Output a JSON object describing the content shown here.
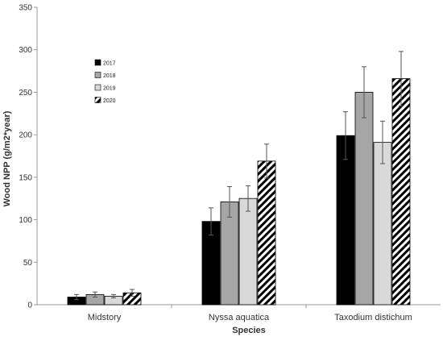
{
  "chart_data": {
    "type": "bar",
    "categories": [
      "Midstory",
      "Nyssa aquatica",
      "Taxodium distichum"
    ],
    "xlabel": "Species",
    "ylabel": "Wood NPP (g/m2*year)",
    "ylim": [
      0,
      350
    ],
    "yticks": [
      0,
      50,
      100,
      150,
      200,
      250,
      300,
      350
    ],
    "grid": false,
    "legend_position": "upper-left",
    "series": [
      {
        "name": "2017",
        "values": [
          9,
          98,
          199
        ],
        "errors": [
          3,
          16,
          28
        ],
        "fill": "#000000",
        "pattern": "solid"
      },
      {
        "name": "2018",
        "values": [
          12,
          121,
          250
        ],
        "errors": [
          3,
          18,
          30
        ],
        "fill": "#a6a6a6",
        "pattern": "solid"
      },
      {
        "name": "2019",
        "values": [
          10,
          125,
          191
        ],
        "errors": [
          2,
          15,
          25
        ],
        "fill": "#d9d9d9",
        "pattern": "solid"
      },
      {
        "name": "2020",
        "values": [
          14,
          169,
          266
        ],
        "errors": [
          4,
          20,
          32
        ],
        "fill": "#ffffff",
        "pattern": "diagonal-hatch"
      }
    ]
  }
}
